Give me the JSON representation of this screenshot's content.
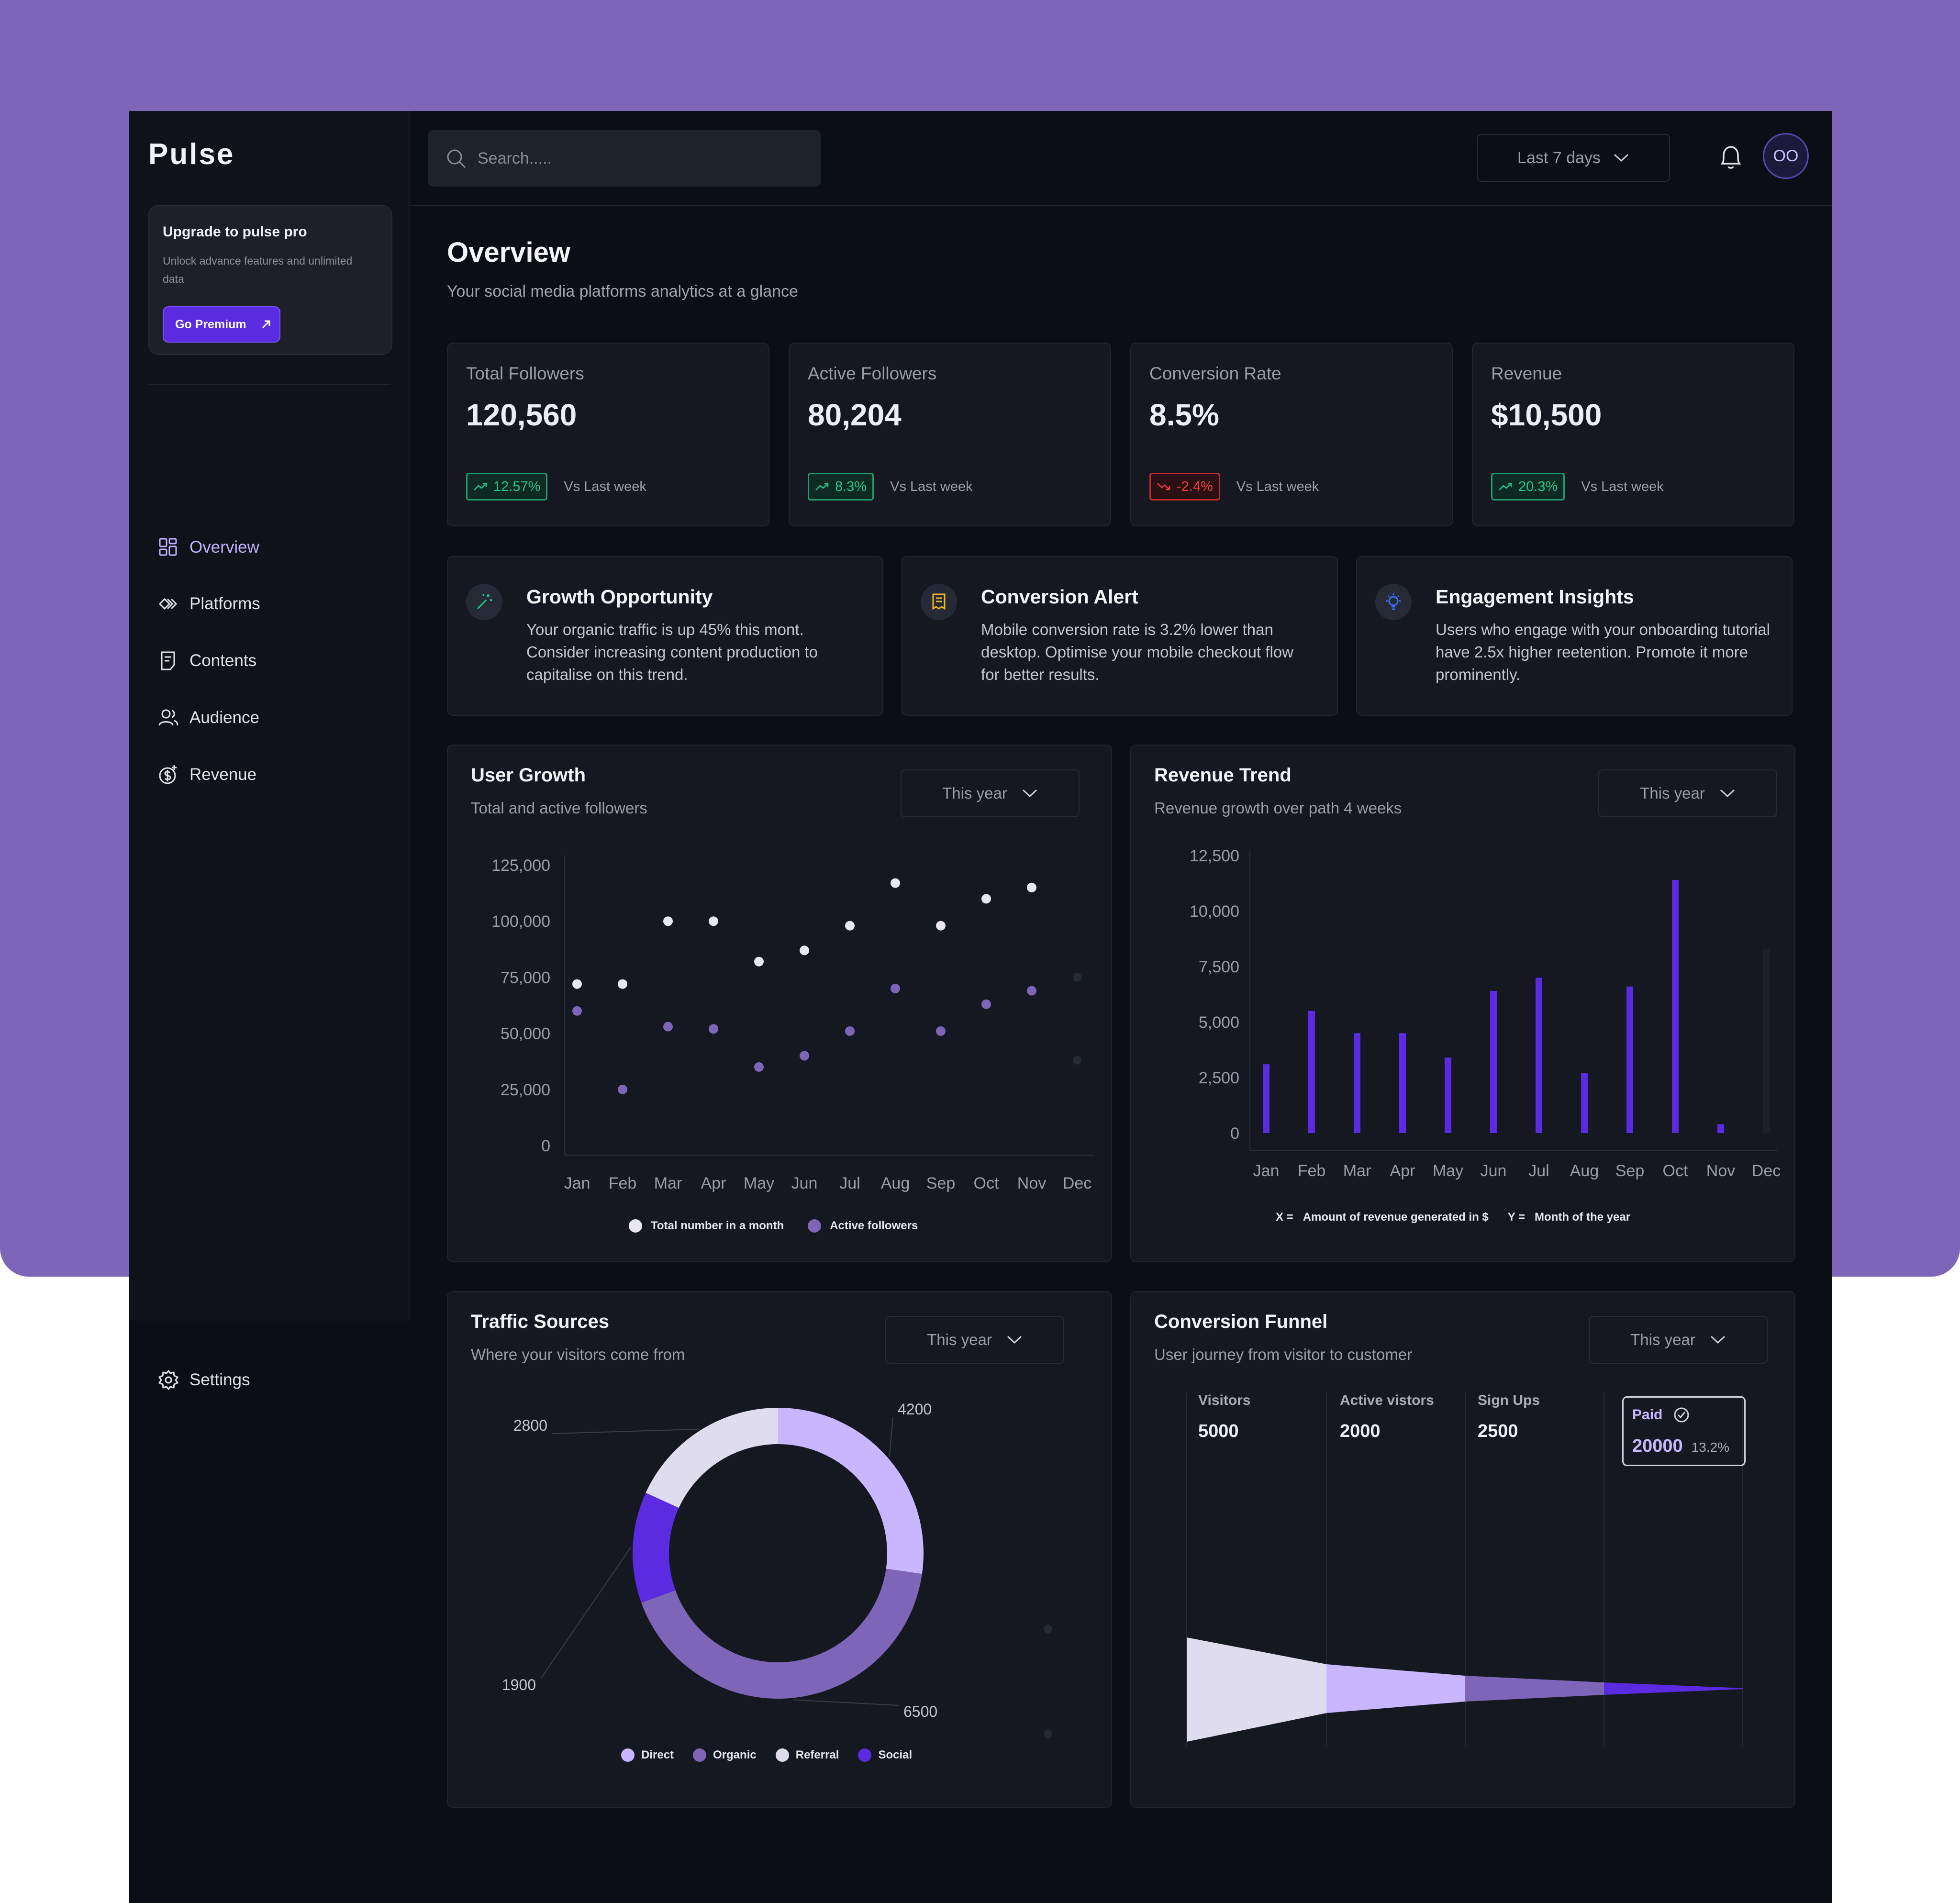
{
  "app": {
    "name": "Pulse"
  },
  "upgrade": {
    "title": "Upgrade to pulse pro",
    "desc": "Unlock advance features and unlimited data",
    "button": "Go Premium"
  },
  "nav": {
    "items": [
      {
        "label": "Overview",
        "icon": "grid-icon"
      },
      {
        "label": "Platforms",
        "icon": "platforms-icon"
      },
      {
        "label": "Contents",
        "icon": "document-icon"
      },
      {
        "label": "Audience",
        "icon": "users-icon"
      },
      {
        "label": "Revenue",
        "icon": "dollar-icon"
      }
    ],
    "settings": "Settings"
  },
  "topbar": {
    "search_placeholder": "Search.....",
    "range": "Last 7 days",
    "avatar": "OO"
  },
  "page": {
    "title": "Overview",
    "subtitle": "Your social media platforms analytics at a glance"
  },
  "stats": [
    {
      "label": "Total Followers",
      "value": "120,560",
      "change": "12.57%",
      "direction": "up",
      "note": "Vs Last week"
    },
    {
      "label": "Active Followers",
      "value": "80,204",
      "change": "8.3%",
      "direction": "up",
      "note": "Vs Last week"
    },
    {
      "label": "Conversion Rate",
      "value": "8.5%",
      "change": "-2.4%",
      "direction": "down",
      "note": "Vs Last week"
    },
    {
      "label": "Revenue",
      "value": "$10,500",
      "change": "20.3%",
      "direction": "up",
      "note": "Vs Last week"
    }
  ],
  "insights": [
    {
      "title": "Growth Opportunity",
      "text": "Your organic traffic is up 45% this mont. Consider increasing content production to capitalise on this trend.",
      "icon": "magic-wand-icon",
      "icon_color": "#22c58a"
    },
    {
      "title": "Conversion Alert",
      "text": "Mobile conversion rate is 3.2% lower than desktop. Optimise your mobile checkout flow for better results.",
      "icon": "receipt-icon",
      "icon_color": "#f0b429"
    },
    {
      "title": "Engagement Insights",
      "text": "Users who engage with your onboarding tutorial have 2.5x higher reetention. Promote it more prominently.",
      "icon": "lightbulb-icon",
      "icon_color": "#3b6df5"
    }
  ],
  "user_growth": {
    "title": "User Growth",
    "subtitle": "Total and active followers",
    "select": "This year",
    "legend": [
      "Total number in a month",
      "Active followers"
    ]
  },
  "revenue_trend": {
    "title": "Revenue Trend",
    "subtitle": "Revenue growth over path 4 weeks",
    "select": "This year",
    "footnote_x": "X =",
    "footnote_x_text": "Amount of revenue generated in $",
    "footnote_y": "Y =",
    "footnote_y_text": "Month of the year"
  },
  "traffic": {
    "title": "Traffic Sources",
    "subtitle": "Where your visitors come from",
    "select": "This year",
    "legend": [
      "Direct",
      "Organic",
      "Referral",
      "Social"
    ]
  },
  "funnel": {
    "title": "Conversion Funnel",
    "subtitle": "User journey from visitor to customer",
    "select": "This year",
    "stages": [
      {
        "label": "Visitors",
        "value": "5000"
      },
      {
        "label": "Active vistors",
        "value": "2000"
      },
      {
        "label": "Sign Ups",
        "value": "2500"
      },
      {
        "label": "Paid",
        "value": "20000",
        "pct": "13.2%"
      }
    ]
  },
  "colors": {
    "accent": "#5a2be0",
    "lavender": "#c8b6ff",
    "mid_purple": "#7d65b7",
    "light": "#e0dcef",
    "up": "#22c58a",
    "down": "#ef3c3c"
  },
  "chart_data": [
    {
      "type": "scatter",
      "title": "User Growth",
      "x": [
        "Jan",
        "Feb",
        "Mar",
        "Apr",
        "May",
        "Jun",
        "Jul",
        "Aug",
        "Sep",
        "Oct",
        "Nov",
        "Dec"
      ],
      "yticks": [
        "0",
        "25,000",
        "50,000",
        "75,000",
        "100,000",
        "125,000"
      ],
      "ylim": [
        0,
        125000
      ],
      "series": [
        {
          "name": "Total number in a month",
          "color": "#e8e6f2",
          "values": [
            72000,
            72000,
            100000,
            100000,
            82000,
            87000,
            98000,
            117000,
            98000,
            110000,
            115000,
            null
          ]
        },
        {
          "name": "Active followers",
          "color": "#7d65b7",
          "values": [
            60000,
            25000,
            53000,
            52000,
            35000,
            40000,
            51000,
            70000,
            51000,
            63000,
            69000,
            null
          ]
        }
      ],
      "grid": false
    },
    {
      "type": "bar",
      "title": "Revenue Trend",
      "categories": [
        "Jan",
        "Feb",
        "Mar",
        "Apr",
        "May",
        "Jun",
        "Jul",
        "Aug",
        "Sep",
        "Oct",
        "Nov",
        "Dec"
      ],
      "yticks": [
        "0",
        "2,500",
        "5,000",
        "7,500",
        "10,000",
        "12,500"
      ],
      "ylim": [
        0,
        12500
      ],
      "values": [
        3100,
        5500,
        4500,
        4500,
        3400,
        6400,
        7000,
        2700,
        6600,
        11400,
        400,
        8300
      ],
      "colors": [
        "#5a2be0",
        "#5a2be0",
        "#5a2be0",
        "#5a2be0",
        "#5a2be0",
        "#5a2be0",
        "#5a2be0",
        "#5a2be0",
        "#5a2be0",
        "#5a2be0",
        "#5a2be0",
        "#1d2029"
      ]
    },
    {
      "type": "pie",
      "title": "Traffic Sources",
      "donut": true,
      "slices": [
        {
          "name": "Direct",
          "value": 4200,
          "label": "4200",
          "color": "#c8b6ff"
        },
        {
          "name": "Organic",
          "value": 6500,
          "label": "6500",
          "color": "#7d65b7"
        },
        {
          "name": "Social",
          "value": 1900,
          "label": "1900",
          "color": "#5a2be0"
        },
        {
          "name": "Referral",
          "value": 2800,
          "label": "2800",
          "color": "#e0dcef"
        }
      ]
    }
  ]
}
